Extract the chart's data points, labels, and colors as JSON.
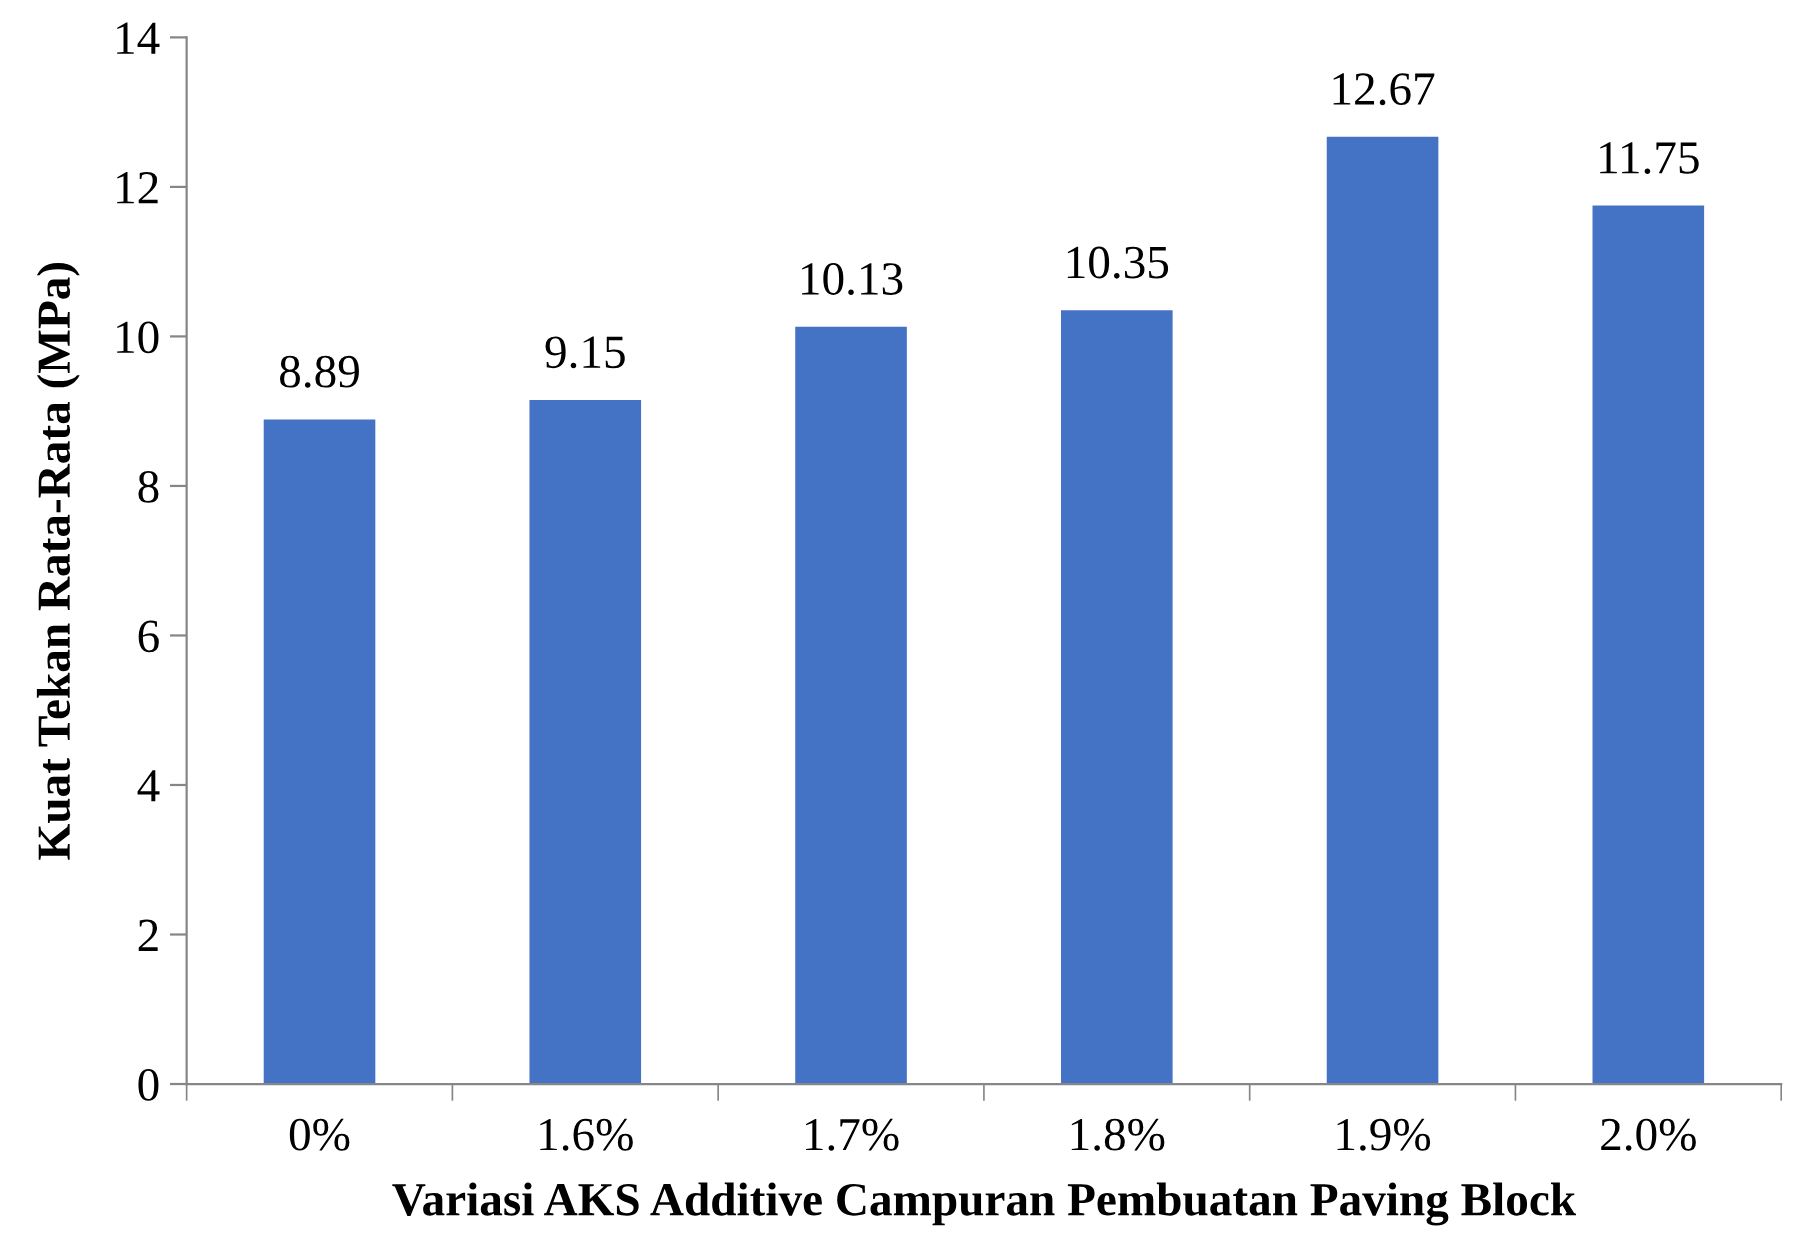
{
  "chart_data": {
    "type": "bar",
    "xlabel": "Variasi AKS Additive Campuran Pembuatan Paving Block",
    "ylabel": "Kuat Tekan Rata-Rata (MPa)",
    "categories": [
      "0%",
      "1.6%",
      "1.7%",
      "1.8%",
      "1.9%",
      "2.0%"
    ],
    "values": [
      8.89,
      9.15,
      10.13,
      10.35,
      12.67,
      11.75
    ],
    "color": "#4472c4",
    "ylim": [
      0,
      14
    ],
    "yticks": [
      0,
      2,
      4,
      6,
      8,
      10,
      12,
      14
    ],
    "data_labels": true,
    "grid": false,
    "legend": false
  }
}
